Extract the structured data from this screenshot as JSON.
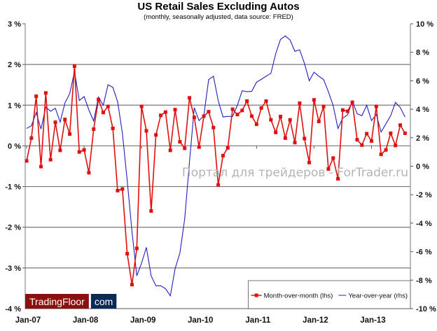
{
  "chart_data": {
    "type": "line",
    "title": "US Retail Sales Excluding Autos",
    "subtitle": "(monthly, seasonally adjusted, data source: FRED)",
    "x_start": "Jan-07",
    "x_tick_labels": [
      "Jan-07",
      "Jan-08",
      "Jan-09",
      "Jan-10",
      "Jan-11",
      "Jan-12",
      "Jan-13"
    ],
    "y_left": {
      "range": [
        -4,
        3
      ],
      "ticks": [
        "3 %",
        "2 %",
        "1 %",
        "0 %",
        "-1 %",
        "-2 %",
        "-3 %",
        "-4 %"
      ],
      "values": [
        3,
        2,
        1,
        0,
        -1,
        -2,
        -3,
        -4
      ]
    },
    "y_right": {
      "range": [
        -10,
        10
      ],
      "ticks": [
        "10 %",
        "8 %",
        "6 %",
        "4 %",
        "2 %",
        "0 %",
        "-2 %",
        "-4 %",
        "-6 %",
        "-8 %",
        "-10 %"
      ],
      "values": [
        10,
        8,
        6,
        4,
        2,
        0,
        -2,
        -4,
        -6,
        -8,
        -10
      ]
    },
    "grid": true,
    "legend_position": "bottom-right",
    "series": [
      {
        "name": "Month-over-month (lhs)",
        "axis": "left",
        "color": "#e01010",
        "marker": "square",
        "values": [
          -0.37,
          0.19,
          1.22,
          -0.51,
          1.3,
          -0.34,
          0.58,
          -0.11,
          0.65,
          0.29,
          1.96,
          -0.15,
          -0.1,
          -0.66,
          0.41,
          1.14,
          0.82,
          0.97,
          0.43,
          -1.1,
          -1.06,
          -2.65,
          -3.41,
          -2.52,
          0.97,
          0.37,
          -1.6,
          0.27,
          0.75,
          0.83,
          -0.11,
          0.89,
          0.1,
          -0.06,
          1.18,
          0.7,
          -0.03,
          0.73,
          0.84,
          0.45,
          -0.96,
          -0.24,
          -0.05,
          0.9,
          0.77,
          0.87,
          1.1,
          0.73,
          0.53,
          0.93,
          1.1,
          0.64,
          0.33,
          0.72,
          0.19,
          0.64,
          0.08,
          1.05,
          0.18,
          -0.41,
          1.13,
          0.6,
          0.97,
          -0.57,
          -0.3,
          -0.81,
          0.88,
          0.85,
          1.07,
          0.15,
          0.02,
          0.3,
          0.12,
          0.97,
          -0.21,
          -0.1,
          0.31,
          0.01,
          0.51,
          0.31
        ]
      },
      {
        "name": "Year-over-year (rhs)",
        "axis": "right",
        "color": "#2020c0",
        "marker": "none",
        "values": [
          2.65,
          2.84,
          3.76,
          2.61,
          4.15,
          3.86,
          4.07,
          3.1,
          4.44,
          5.1,
          6.65,
          4.61,
          4.89,
          3.95,
          3.17,
          4.85,
          4.28,
          5.72,
          5.54,
          4.53,
          2.3,
          -1.0,
          -4.6,
          -7.7,
          -6.8,
          -5.7,
          -7.7,
          -8.4,
          -8.4,
          -8.6,
          -9.1,
          -7.2,
          -6.1,
          -3.7,
          0.3,
          4.1,
          3.2,
          3.55,
          6.08,
          6.32,
          4.6,
          3.46,
          3.5,
          3.5,
          4.28,
          5.3,
          5.23,
          5.26,
          5.9,
          6.1,
          6.32,
          6.52,
          7.9,
          8.9,
          9.15,
          8.86,
          8.07,
          8.17,
          7.22,
          6.0,
          6.6,
          6.32,
          6.08,
          5.23,
          4.25,
          2.65,
          3.38,
          3.6,
          4.58,
          3.68,
          3.55,
          4.28,
          3.2,
          3.63,
          2.4,
          2.97,
          3.55,
          4.48,
          4.12,
          3.46
        ]
      }
    ]
  },
  "watermark": "Портал для трейдеров - ForTrader.ru",
  "logo": {
    "left": "TradingFloor",
    "right": "com",
    "left_color": "#8b1010",
    "right_color": "#0d2a55"
  }
}
